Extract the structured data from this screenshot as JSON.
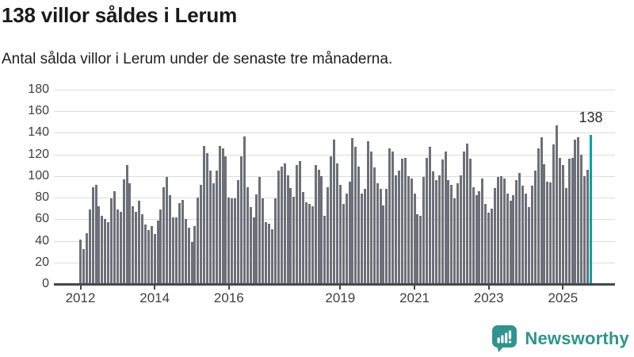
{
  "header": {
    "title": "138 villor såldes i Lerum",
    "subtitle": "Antal sålda villor i Lerum under de senaste tre månaderna."
  },
  "colors": {
    "bar": "#6d7078",
    "accent": "#00a3a3",
    "grid": "#dcdcdc",
    "axis": "#45484d",
    "label": "#3f3f3f",
    "logo": "#2f948d"
  },
  "chart_data": {
    "type": "bar",
    "title": "138 villor såldes i Lerum",
    "subtitle": "Antal sålda villor i Lerum under de senaste tre månaderna.",
    "xlabel": "",
    "ylabel": "",
    "ylim": [
      0,
      180
    ],
    "y_ticks": [
      0,
      20,
      40,
      60,
      80,
      100,
      120,
      140,
      160,
      180
    ],
    "grid": "horizontal",
    "x_tick_labels": [
      "2012",
      "2014",
      "2016",
      "2019",
      "2021",
      "2023",
      "2025"
    ],
    "x_tick_month_index": [
      0,
      24,
      48,
      84,
      108,
      132,
      156
    ],
    "x_start": "2012-01",
    "x_end": "2025-10",
    "highlight": {
      "position": "last",
      "value": 138,
      "label": "138"
    },
    "series_by_year": {
      "2012": [
        41,
        32,
        47,
        69,
        90,
        92,
        72,
        63,
        60,
        57,
        79,
        86
      ],
      "2013": [
        69,
        67,
        97,
        110,
        93,
        72,
        67,
        77,
        65,
        55,
        50,
        54
      ],
      "2014": [
        46,
        59,
        69,
        90,
        99,
        82,
        62,
        62,
        75,
        78,
        60,
        52
      ],
      "2015": [
        39,
        54,
        80,
        92,
        128,
        121,
        105,
        93,
        105,
        128,
        126,
        118
      ],
      "2016": [
        80,
        79,
        79,
        96,
        118,
        137,
        90,
        71,
        62,
        83,
        99,
        79
      ],
      "2017": [
        57,
        56,
        51,
        79,
        105,
        109,
        112,
        101,
        89,
        81,
        110,
        114
      ],
      "2018": [
        85,
        76,
        74,
        72,
        110,
        106,
        100,
        63,
        90,
        118,
        134,
        112
      ],
      "2019": [
        92,
        74,
        84,
        95,
        135,
        127,
        109,
        84,
        88,
        132,
        123,
        108
      ],
      "2020": [
        93,
        88,
        73,
        88,
        126,
        123,
        101,
        105,
        116,
        117,
        100,
        98
      ],
      "2021": [
        84,
        65,
        63,
        99,
        117,
        127,
        104,
        96,
        101,
        115,
        123,
        96
      ],
      "2022": [
        92,
        79,
        93,
        101,
        123,
        130,
        116,
        90,
        82,
        86,
        98,
        74
      ],
      "2023": [
        66,
        70,
        89,
        99,
        100,
        98,
        84,
        77,
        82,
        96,
        103,
        91
      ],
      "2024": [
        84,
        71,
        91,
        105,
        126,
        136,
        111,
        95,
        94,
        129,
        147,
        117
      ],
      "2025": [
        110,
        89,
        116,
        117,
        134,
        136,
        120,
        100,
        106,
        138
      ]
    }
  },
  "footer": {
    "brand": "Newsworthy"
  }
}
